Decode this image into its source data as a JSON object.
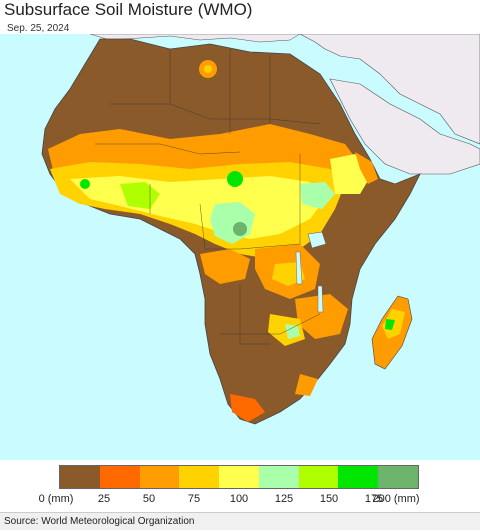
{
  "header": {
    "title": "Subsurface Soil Moisture (WMO)",
    "date": "Sep. 25, 2024"
  },
  "legend": {
    "colors": [
      "#8b5a2b",
      "#ff6a00",
      "#ff9c00",
      "#ffd200",
      "#ffff4d",
      "#aaffaa",
      "#b0ff00",
      "#00e600",
      "#6cb46c"
    ],
    "ticks": [
      "0 (mm)",
      "25",
      "50",
      "75",
      "100",
      "125",
      "150",
      "175",
      "200 (mm)"
    ]
  },
  "footer": {
    "source": "Source: World Meteorological Organization"
  }
}
